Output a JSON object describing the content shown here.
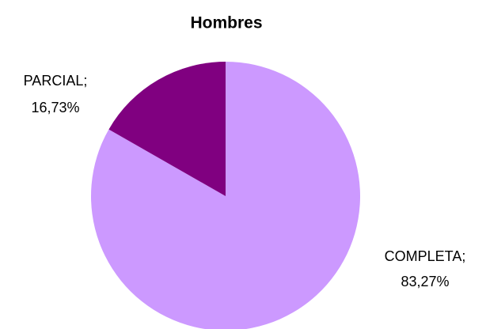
{
  "chart_data": {
    "type": "pie",
    "title": "Hombres",
    "categories": [
      "COMPLETA;",
      "PARCIAL;"
    ],
    "values": [
      83.27,
      16.73
    ],
    "value_labels": [
      "83,27%",
      "16,73%"
    ],
    "colors": [
      "#cc99ff",
      "#800080"
    ]
  }
}
